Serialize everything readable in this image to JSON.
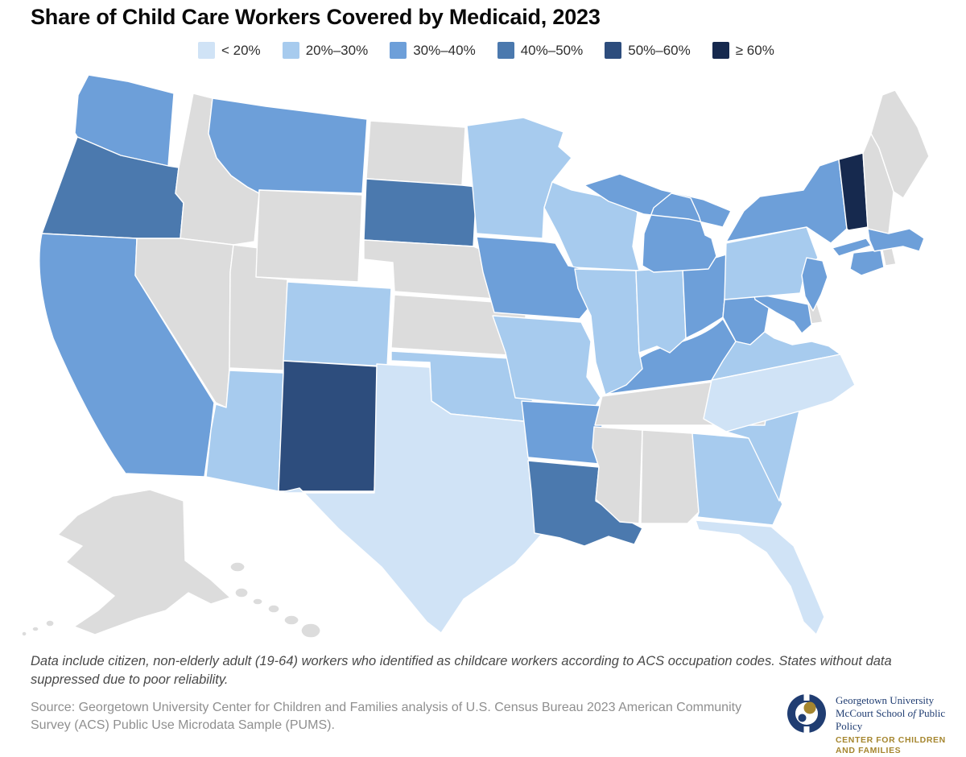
{
  "title": "Share of Child Care Workers Covered by Medicaid, 2023",
  "legend": {
    "items": [
      {
        "label": "< 20%",
        "key": "lt20"
      },
      {
        "label": "20%–30%",
        "key": "20-30"
      },
      {
        "label": "30%–40%",
        "key": "30-40"
      },
      {
        "label": "40%–50%",
        "key": "40-50"
      },
      {
        "label": "50%–60%",
        "key": "50-60"
      },
      {
        "label": "≥ 60%",
        "key": "gte60"
      }
    ]
  },
  "chart_data": {
    "type": "choropleth",
    "geography": "United States, by state",
    "title": "Share of Child Care Workers Covered by Medicaid, 2023",
    "unit": "share of child care workers covered by Medicaid",
    "categories": [
      "< 20%",
      "20%–30%",
      "30%–40%",
      "40%–50%",
      "50%–60%",
      "≥ 60%"
    ],
    "category_colors": {
      "lt20": "#d0e3f6",
      "20-30": "#a7cbee",
      "30-40": "#6d9fd9",
      "40-50": "#4b79ae",
      "50-60": "#2d4d7d",
      "gte60": "#16294e",
      "no-data": "#dcdcdc"
    },
    "states": {
      "WA": "30-40",
      "OR": "40-50",
      "CA": "30-40",
      "ID": "no-data",
      "NV": "no-data",
      "UT": "no-data",
      "AZ": "20-30",
      "MT": "30-40",
      "WY": "no-data",
      "CO": "20-30",
      "NM": "50-60",
      "ND": "no-data",
      "SD": "40-50",
      "NE": "no-data",
      "KS": "no-data",
      "OK": "20-30",
      "TX": "lt20",
      "MN": "20-30",
      "IA": "30-40",
      "MO": "20-30",
      "AR": "30-40",
      "LA": "40-50",
      "WI": "20-30",
      "IL": "20-30",
      "MI": "30-40",
      "IN": "20-30",
      "OH": "30-40",
      "KY": "30-40",
      "TN": "no-data",
      "MS": "no-data",
      "AL": "no-data",
      "GA": "20-30",
      "SC": "20-30",
      "NC": "lt20",
      "FL": "lt20",
      "VA": "20-30",
      "WV": "30-40",
      "MD": "30-40",
      "DE": "no-data",
      "PA": "20-30",
      "NJ": "30-40",
      "NY": "30-40",
      "CT": "30-40",
      "RI": "no-data",
      "MA": "30-40",
      "VT": "gte60",
      "NH": "no-data",
      "ME": "no-data",
      "AK": "no-data",
      "HI": "no-data"
    },
    "legend_position": "top",
    "no_data_note": "States without data suppressed due to poor reliability"
  },
  "note": "Data include citizen, non-elderly adult (19-64) workers who identified as childcare workers according to ACS occupation codes. States without data suppressed due to poor reliability.",
  "source": "Source: Georgetown University Center for Children and Families analysis of U.S. Census Bureau 2023 American Community Survey (ACS) Public Use Microdata Sample (PUMS).",
  "logo": {
    "org_line1": "Georgetown University",
    "org_line2_pre": "McCourt School ",
    "org_line2_italic": "of",
    "org_line2_post": " Public Policy",
    "center_line1": "CENTER FOR CHILDREN",
    "center_line2": "AND FAMILIES",
    "navy": "#203d72",
    "gold": "#a5862f"
  }
}
